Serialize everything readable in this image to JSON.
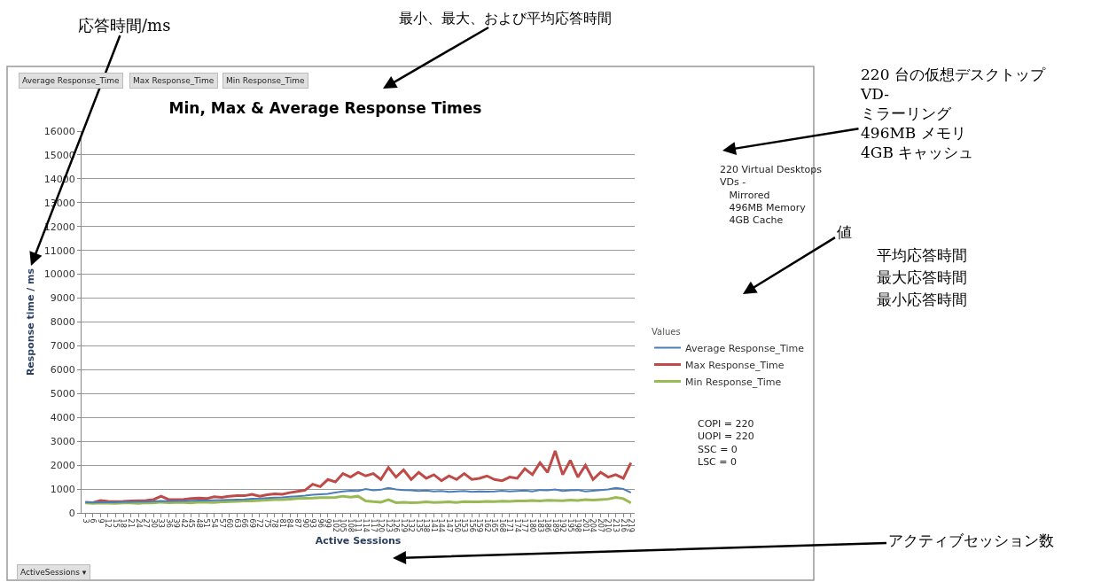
{
  "chart_data": {
    "type": "line",
    "title": "Min, Max & Average Response Times",
    "xlabel": "Active Sessions",
    "ylabel": "Response time / ms",
    "legend_title": "Values",
    "legend": "right",
    "grid": "y",
    "marker": "none",
    "line_style": "solid",
    "xlim": [
      1.5,
      220.5
    ],
    "ylim": [
      0,
      16000
    ],
    "yticks": [
      0,
      1000,
      2000,
      3000,
      4000,
      5000,
      6000,
      7000,
      8000,
      9000,
      10000,
      11000,
      12000,
      13000,
      14000,
      15000,
      16000
    ],
    "xticks": [
      3,
      6,
      9,
      12,
      15,
      18,
      21,
      24,
      27,
      30,
      33,
      36,
      39,
      42,
      45,
      48,
      51,
      54,
      57,
      60,
      63,
      66,
      69,
      72,
      75,
      78,
      81,
      84,
      87,
      90,
      93,
      96,
      99,
      102,
      105,
      108,
      111,
      114,
      117,
      120,
      123,
      126,
      129,
      132,
      135,
      138,
      141,
      144,
      147,
      150,
      153,
      156,
      159,
      162,
      165,
      168,
      171,
      174,
      177,
      180,
      183,
      186,
      189,
      192,
      195,
      198,
      201,
      204,
      207,
      210,
      213,
      216,
      219
    ],
    "x": [
      3,
      6,
      9,
      12,
      15,
      18,
      21,
      24,
      27,
      30,
      33,
      36,
      39,
      42,
      45,
      48,
      51,
      54,
      57,
      60,
      63,
      66,
      69,
      72,
      75,
      78,
      81,
      84,
      87,
      90,
      93,
      96,
      99,
      102,
      105,
      108,
      111,
      114,
      117,
      120,
      123,
      126,
      129,
      132,
      135,
      138,
      141,
      144,
      147,
      150,
      153,
      156,
      159,
      162,
      165,
      168,
      171,
      174,
      177,
      180,
      183,
      186,
      189,
      192,
      195,
      198,
      201,
      204,
      207,
      210,
      213,
      216,
      219
    ],
    "series": [
      {
        "name": "Average Response_Time",
        "color": "#4a7ebb",
        "values": [
          450,
          440,
          450,
          450,
          450,
          460,
          460,
          470,
          470,
          480,
          500,
          490,
          500,
          500,
          510,
          520,
          520,
          530,
          540,
          550,
          560,
          570,
          590,
          600,
          620,
          640,
          650,
          680,
          700,
          720,
          760,
          780,
          800,
          850,
          900,
          930,
          920,
          1000,
          950,
          970,
          1050,
          980,
          960,
          950,
          920,
          940,
          900,
          920,
          880,
          900,
          920,
          880,
          900,
          890,
          900,
          930,
          900,
          920,
          940,
          900,
          960,
          950,
          980,
          920,
          950,
          960,
          900,
          930,
          960,
          980,
          1050,
          1000,
          850
        ]
      },
      {
        "name": "Max Response_Time",
        "color": "#be4b48",
        "values": [
          450,
          430,
          520,
          480,
          470,
          480,
          500,
          510,
          520,
          560,
          700,
          560,
          560,
          570,
          600,
          620,
          600,
          680,
          650,
          700,
          720,
          720,
          780,
          700,
          760,
          800,
          780,
          850,
          900,
          950,
          1200,
          1100,
          1400,
          1300,
          1650,
          1500,
          1700,
          1550,
          1650,
          1400,
          1900,
          1500,
          1800,
          1400,
          1700,
          1450,
          1600,
          1350,
          1550,
          1400,
          1650,
          1400,
          1450,
          1550,
          1400,
          1350,
          1500,
          1450,
          1850,
          1600,
          2100,
          1700,
          2600,
          1600,
          2200,
          1500,
          2000,
          1400,
          1700,
          1500,
          1600,
          1450,
          2100
        ]
      },
      {
        "name": "Min Response_Time",
        "color": "#98b954",
        "values": [
          420,
          400,
          420,
          410,
          400,
          420,
          420,
          400,
          430,
          420,
          450,
          430,
          440,
          440,
          420,
          450,
          450,
          440,
          460,
          470,
          480,
          500,
          500,
          520,
          540,
          560,
          560,
          580,
          600,
          610,
          620,
          640,
          640,
          650,
          700,
          660,
          700,
          500,
          470,
          450,
          550,
          430,
          450,
          430,
          440,
          460,
          440,
          450,
          460,
          440,
          470,
          460,
          460,
          480,
          470,
          490,
          480,
          500,
          500,
          520,
          500,
          530,
          520,
          510,
          540,
          520,
          560,
          540,
          560,
          580,
          650,
          600,
          420
        ]
      }
    ],
    "annotations": [
      "応答時間/ms",
      "最小、最大、および平均応答時間",
      "220 台の仮想デスクトップ\nVD-\nミラーリング\n496MB メモリ\n4GB キャッシュ",
      "値",
      "平均応答時間",
      "最大応答時間",
      "最小応答時間",
      "アクティブセッション数",
      "220 Virtual Desktops\nVDs -\n   Mirrored\n   496MB Memory\n   4GB Cache",
      "COPI = 220\nUOPI = 220\nSSC = 0\nLSC = 0",
      "Average Response_Time",
      "Max Response_Time",
      "Min Response_Time",
      "ActiveSessions ▾"
    ]
  }
}
